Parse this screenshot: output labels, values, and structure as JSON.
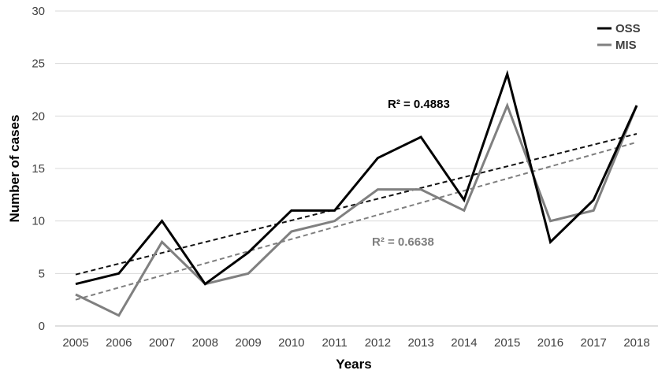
{
  "chart_data": {
    "type": "line",
    "x": [
      "2005",
      "2006",
      "2007",
      "2008",
      "2009",
      "2010",
      "2011",
      "2012",
      "2013",
      "2014",
      "2015",
      "2016",
      "2017",
      "2018"
    ],
    "series": [
      {
        "name": "OSS",
        "values": [
          4,
          5,
          10,
          4,
          7,
          11,
          11,
          16,
          18,
          12,
          24,
          8,
          12,
          21
        ],
        "color": "#000000",
        "trendline": {
          "start": 4.9,
          "end": 18.3,
          "r2_label": "R² = 0.4883",
          "color": "#111111"
        }
      },
      {
        "name": "MIS",
        "values": [
          3,
          1,
          8,
          4,
          5,
          9,
          10,
          13,
          13,
          11,
          21,
          10,
          11,
          21
        ],
        "color": "#808080",
        "trendline": {
          "start": 2.5,
          "end": 17.5,
          "r2_label": "R² = 0.6638",
          "color": "#7f7f7f"
        }
      }
    ],
    "xlabel": "Years",
    "ylabel": "Number of cases",
    "ylim": [
      0,
      30
    ],
    "yticks": [
      0,
      5,
      10,
      15,
      20,
      25,
      30
    ],
    "grid": "horizontal",
    "legend_position": "top-right"
  }
}
